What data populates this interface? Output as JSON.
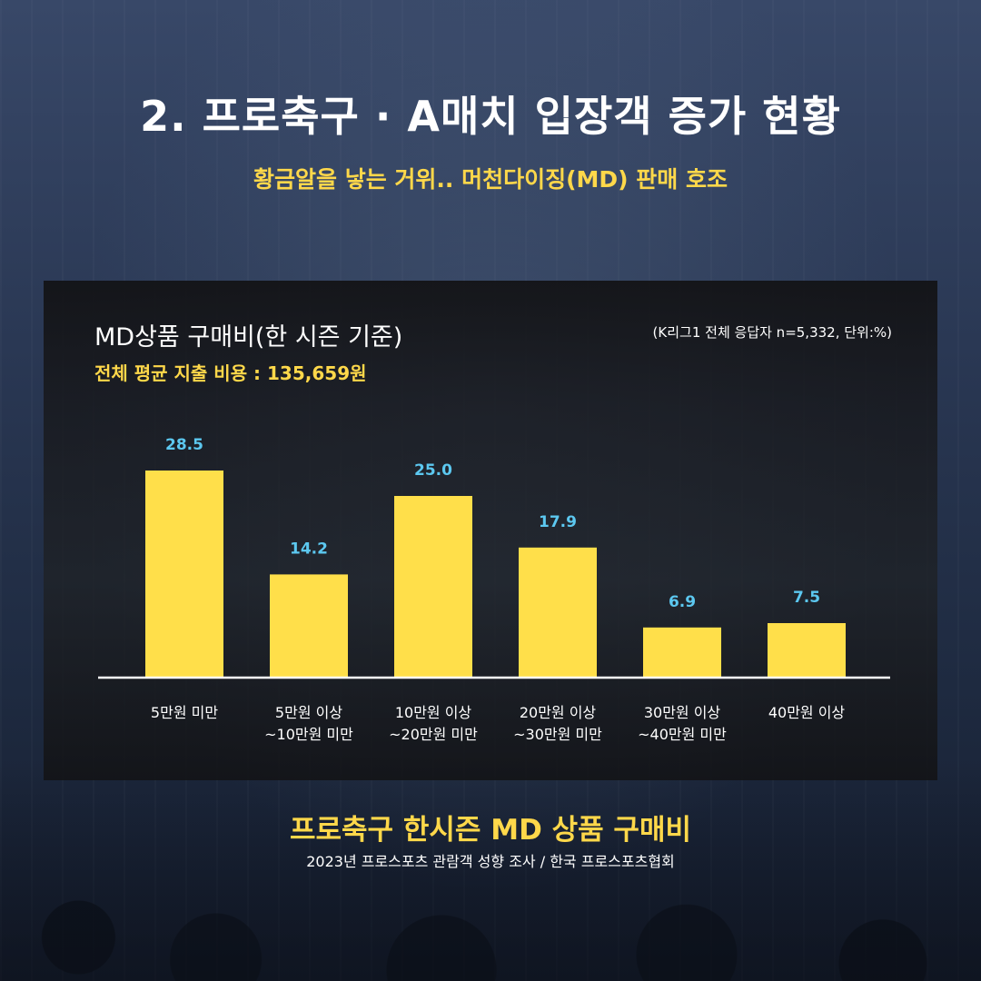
{
  "header": {
    "title": "2. 프로축구 · A매치 입장객 증가 현황",
    "subtitle": "황금알을 낳는 거위.. 머천다이징(MD) 판매 호조"
  },
  "panel": {
    "title": "MD상품 구매비(한 시즌 기준)",
    "average": "전체 평균 지출 비용 : 135,659원",
    "note": "(K리그1 전체 응답자 n=5,332, 단위:%)"
  },
  "chart_data": {
    "type": "bar",
    "title": "MD상품 구매비(한 시즌 기준)",
    "categories": [
      [
        "5만원 미만"
      ],
      [
        "5만원 이상",
        "~10만원 미만"
      ],
      [
        "10만원 이상",
        "~20만원 미만"
      ],
      [
        "20만원 이상",
        "~30만원 미만"
      ],
      [
        "30만원 이상",
        "~40만원 미만"
      ],
      [
        "40만원 이상"
      ]
    ],
    "values": [
      28.5,
      14.2,
      25.0,
      17.9,
      6.9,
      7.5
    ],
    "value_labels": [
      "28.5",
      "14.2",
      "25.0",
      "17.9",
      "6.9",
      "7.5"
    ],
    "ylim": [
      0,
      30
    ],
    "grid": false,
    "colors": {
      "bar": "#ffdf4a",
      "value_label": "#5cc8f0",
      "baseline": "#ffffff",
      "tick_label": "#ffffff"
    }
  },
  "footer": {
    "title": "프로축구 한시즌 MD 상품 구매비",
    "source": "2023년 프로스포츠 관람객 성향 조사 / 한국 프로스포츠협회"
  }
}
